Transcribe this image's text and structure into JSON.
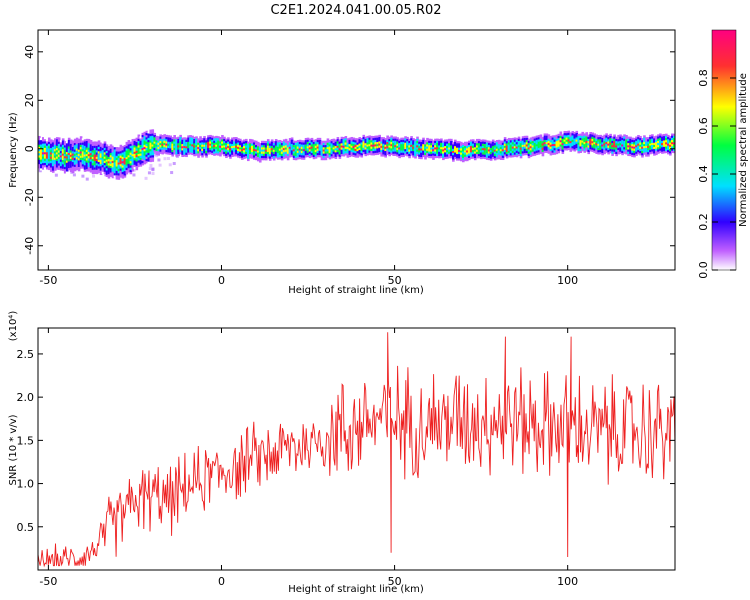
{
  "title": "C2E1.2024.041.00.05.R02",
  "chart_data": [
    {
      "type": "heatmap",
      "xlabel": "Height of straight line (km)",
      "ylabel": "Frequency (Hz)",
      "xlim": [
        -53,
        131
      ],
      "ylim": [
        -50,
        49
      ],
      "xticks": [
        -50,
        0,
        50,
        100
      ],
      "yticks": [
        -40,
        -20,
        0,
        20,
        40
      ],
      "colorbar": {
        "label": "Normalized spectral amplitude",
        "range": [
          0.0,
          1.0
        ],
        "ticks": [
          "0.0",
          "0.2",
          "0.4",
          "0.6",
          "0.8"
        ],
        "colors": [
          "#ffffff",
          "#c060ff",
          "#3000ff",
          "#00e0ff",
          "#00ff40",
          "#ffff00",
          "#ff3030",
          "#ff0080"
        ]
      },
      "ridge": {
        "x": [
          -53,
          -45,
          -40,
          -35,
          -30,
          -25,
          -20,
          -10,
          0,
          10,
          20,
          30,
          40,
          50,
          60,
          70,
          80,
          90,
          100,
          110,
          120,
          131
        ],
        "frequency": [
          -2,
          -3,
          -2,
          -4,
          -6,
          -2,
          2,
          1,
          1,
          -1,
          0,
          0,
          1,
          1,
          0,
          -1,
          0,
          1,
          3,
          2,
          1,
          2
        ]
      }
    },
    {
      "type": "line",
      "xlabel": "Height of straight line (km)",
      "ylabel": "SNR (10 * v/v)",
      "y_multiplier": "(x10⁴)",
      "xlim": [
        -53,
        131
      ],
      "ylim": [
        0.0,
        2.8
      ],
      "xticks": [
        -50,
        0,
        50,
        100
      ],
      "yticks": [
        "0.5",
        "1.0",
        "1.5",
        "2.0",
        "2.5"
      ],
      "series_color": "#ee2020",
      "trend": {
        "x": [
          -53,
          -45,
          -40,
          -35,
          -30,
          -25,
          -20,
          -15,
          -10,
          -5,
          0,
          5,
          10,
          15,
          20,
          25,
          30,
          35,
          40,
          45,
          50,
          60,
          70,
          80,
          90,
          100,
          110,
          120,
          131
        ],
        "y": [
          0.1,
          0.12,
          0.15,
          0.3,
          0.6,
          0.8,
          0.85,
          0.8,
          0.95,
          1.05,
          1.15,
          1.2,
          1.3,
          1.35,
          1.42,
          1.45,
          1.55,
          1.6,
          1.7,
          1.75,
          1.75,
          1.7,
          1.75,
          1.75,
          1.7,
          1.65,
          1.6,
          1.6,
          1.6
        ]
      },
      "notable_points": [
        {
          "x": 48,
          "y": 2.75
        },
        {
          "x": 49,
          "y": 0.2
        },
        {
          "x": 100,
          "y": 0.15
        },
        {
          "x": 101,
          "y": 2.7
        },
        {
          "x": 82,
          "y": 2.7
        }
      ]
    }
  ]
}
